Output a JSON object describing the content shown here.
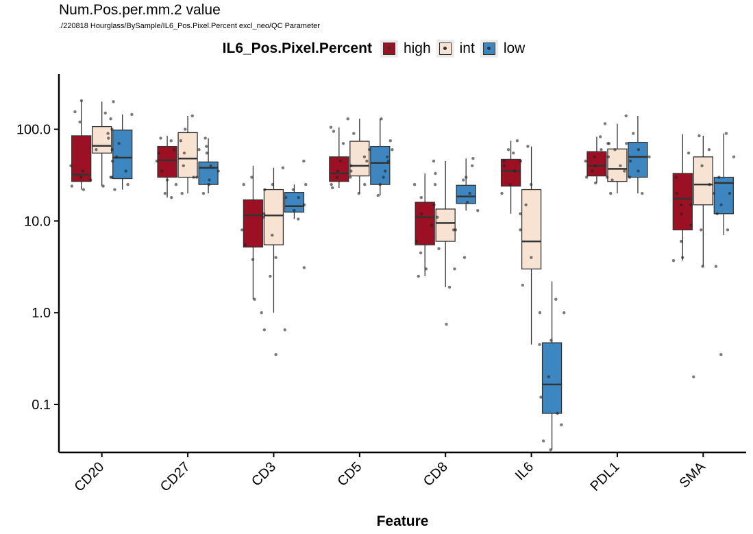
{
  "chart_data": {
    "type": "box",
    "title": "Num.Pos.per.mm.2 value",
    "subtitle": "./220818 Hourglass/BySample/IL6_Pos.Pixel.Percent excl_neo/QC Parameter",
    "xlabel": "Feature",
    "ylabel": "",
    "y_scale": "log10",
    "ylim": [
      0.03,
      400
    ],
    "y_ticks": [
      0.1,
      1.0,
      10.0,
      100.0
    ],
    "y_tick_labels": [
      "0.1",
      "1.0",
      "10.0",
      "100.0"
    ],
    "legend_title": "IL6_Pos.Pixel.Percent",
    "legend_position": "top",
    "categories": [
      "CD20",
      "CD27",
      "CD3",
      "CD5",
      "CD8",
      "IL6",
      "PDL1",
      "SMA"
    ],
    "series": [
      {
        "name": "high",
        "color": "#9b1023",
        "boxes": [
          {
            "q1": 27,
            "median": 32,
            "q3": 85,
            "whisker_low": 22,
            "whisker_high": 205
          },
          {
            "q1": 30,
            "median": 46,
            "q3": 65,
            "whisker_low": 18,
            "whisker_high": 85
          },
          {
            "q1": 5.2,
            "median": 11.5,
            "q3": 17,
            "whisker_low": 1.4,
            "whisker_high": 40
          },
          {
            "q1": 27,
            "median": 33,
            "q3": 50,
            "whisker_low": 23,
            "whisker_high": 105
          },
          {
            "q1": 5.5,
            "median": 11,
            "q3": 16,
            "whisker_low": 2.5,
            "whisker_high": 33
          },
          {
            "q1": 24,
            "median": 35,
            "q3": 47,
            "whisker_low": 12,
            "whisker_high": 75
          },
          {
            "q1": 31,
            "median": 40,
            "q3": 57,
            "whisker_low": 26,
            "whisker_high": 83
          },
          {
            "q1": 8,
            "median": 17.5,
            "q3": 33,
            "whisker_low": 3.7,
            "whisker_high": 88
          }
        ],
        "points": [
          [
            30,
            35,
            24,
            155,
            120,
            205,
            40,
            28,
            22
          ],
          [
            20,
            35,
            60,
            75,
            45,
            28,
            80,
            18,
            55
          ],
          [
            1.4,
            3.8,
            5.5,
            8,
            12,
            22,
            25,
            30,
            0.65
          ],
          [
            25,
            30,
            45,
            70,
            95,
            105,
            40,
            35,
            23
          ],
          [
            3,
            4.5,
            6,
            9,
            12,
            18,
            25,
            33,
            2.5
          ],
          [
            12,
            25,
            40,
            55,
            60,
            75,
            35,
            20,
            45
          ],
          [
            26,
            30,
            45,
            50,
            60,
            83,
            70,
            35,
            40
          ],
          [
            4,
            6,
            9,
            12,
            15,
            20,
            30,
            55,
            3.7
          ]
        ]
      },
      {
        "name": "int",
        "color": "#f8e3d3",
        "boxes": [
          {
            "q1": 55,
            "median": 66,
            "q3": 107,
            "whisker_low": 24,
            "whisker_high": 200
          },
          {
            "q1": 30,
            "median": 48,
            "q3": 92,
            "whisker_low": 20,
            "whisker_high": 140
          },
          {
            "q1": 5.5,
            "median": 11.5,
            "q3": 22,
            "whisker_low": 1,
            "whisker_high": 38
          },
          {
            "q1": 31,
            "median": 40,
            "q3": 74,
            "whisker_low": 20,
            "whisker_high": 130
          },
          {
            "q1": 6,
            "median": 9.5,
            "q3": 13.5,
            "whisker_low": 1.9,
            "whisker_high": 45
          },
          {
            "q1": 3,
            "median": 6,
            "q3": 22,
            "whisker_low": 0.45,
            "whisker_high": 65
          },
          {
            "q1": 27,
            "median": 37,
            "q3": 61,
            "whisker_low": 20,
            "whisker_high": 115
          },
          {
            "q1": 15,
            "median": 25,
            "q3": 50,
            "whisker_low": 3.2,
            "whisker_high": 85
          }
        ],
        "points": [
          [
            60,
            80,
            130,
            200,
            45,
            30,
            90,
            150,
            24
          ],
          [
            25,
            40,
            55,
            75,
            100,
            140,
            30,
            20,
            60
          ],
          [
            1,
            2.5,
            4,
            7,
            11,
            18,
            25,
            38,
            0.35
          ],
          [
            20,
            30,
            45,
            60,
            90,
            130,
            35,
            25,
            50
          ],
          [
            1.9,
            3,
            5,
            8,
            11,
            15,
            25,
            45,
            0.75
          ],
          [
            0.45,
            1,
            2,
            4,
            8,
            15,
            25,
            45,
            65
          ],
          [
            20,
            28,
            35,
            50,
            70,
            115,
            40,
            30,
            60
          ],
          [
            0.2,
            3.2,
            8,
            15,
            25,
            40,
            60,
            85,
            20
          ]
        ]
      },
      {
        "name": "low",
        "color": "#3e86c0",
        "boxes": [
          {
            "q1": 29,
            "median": 49,
            "q3": 98,
            "whisker_low": 22,
            "whisker_high": 145
          },
          {
            "q1": 25,
            "median": 38,
            "q3": 44,
            "whisker_low": 20,
            "whisker_high": 80
          },
          {
            "q1": 12.5,
            "median": 14.5,
            "q3": 20.5,
            "whisker_low": 10.5,
            "whisker_high": 25
          },
          {
            "q1": 25,
            "median": 43,
            "q3": 65,
            "whisker_low": 19,
            "whisker_high": 130
          },
          {
            "q1": 15.5,
            "median": 18.5,
            "q3": 24.5,
            "whisker_low": 13,
            "whisker_high": 48
          },
          {
            "q1": 0.08,
            "median": 0.165,
            "q3": 0.47,
            "whisker_low": 0.032,
            "whisker_high": 2.2
          },
          {
            "q1": 30,
            "median": 50,
            "q3": 72,
            "whisker_low": 20,
            "whisker_high": 140
          },
          {
            "q1": 12,
            "median": 26,
            "q3": 30,
            "whisker_low": 7,
            "whisker_high": 90
          }
        ],
        "points": [
          [
            25,
            35,
            50,
            70,
            100,
            145,
            60,
            30,
            22
          ],
          [
            20,
            30,
            40,
            55,
            80,
            28,
            35,
            25,
            65
          ],
          [
            0.65,
            3.1,
            10.5,
            13,
            15,
            18,
            22,
            25,
            45
          ],
          [
            19,
            25,
            35,
            50,
            75,
            130,
            60,
            30,
            45
          ],
          [
            4,
            8,
            13,
            16,
            20,
            28,
            40,
            48,
            30
          ],
          [
            0.032,
            0.06,
            0.08,
            0.12,
            0.2,
            0.5,
            1,
            1.4,
            0.04
          ],
          [
            20,
            30,
            45,
            60,
            90,
            140,
            50,
            35,
            70
          ],
          [
            0.35,
            3.2,
            8,
            12,
            20,
            30,
            50,
            90,
            15
          ]
        ]
      }
    ]
  }
}
